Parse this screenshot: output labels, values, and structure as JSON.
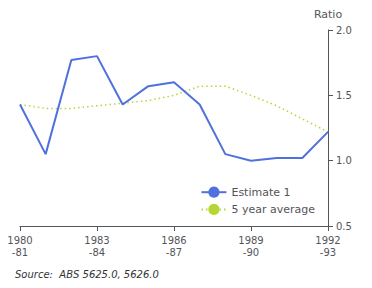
{
  "chart_data": {
    "type": "line",
    "categories": [
      "1980\n-81",
      null,
      null,
      "1983\n-84",
      null,
      null,
      "1986\n-87",
      null,
      null,
      "1989\n-90",
      null,
      null,
      "1992\n-93"
    ],
    "series": [
      {
        "name": "Estimate 1",
        "line_style": "solid",
        "values": [
          1.43,
          1.05,
          1.77,
          1.8,
          1.43,
          1.57,
          1.6,
          1.43,
          1.05,
          1.0,
          1.02,
          1.02,
          1.22
        ]
      },
      {
        "name": "5 year average",
        "line_style": "dotted",
        "values": [
          1.43,
          1.4,
          1.4,
          1.42,
          1.44,
          1.46,
          1.5,
          1.57,
          1.57,
          1.5,
          1.42,
          1.32,
          1.22
        ]
      }
    ],
    "ylabel": "Ratio",
    "source": "Source:  ABS 5625.0, 5626.0",
    "ylim": [
      0.5,
      2.0
    ],
    "yticks": [
      0.5,
      {
        "value": 1.0,
        "label": "1.0"
      },
      1.5,
      {
        "value": 2.0,
        "label": "2.0"
      }
    ],
    "grid": false,
    "legend": "lower right"
  }
}
